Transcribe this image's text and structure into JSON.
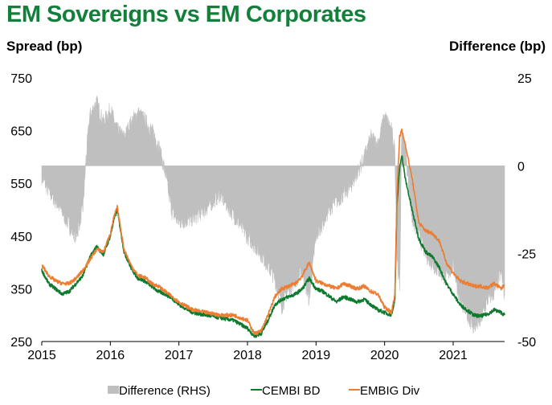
{
  "chart_data": {
    "type": "line",
    "title": "EM Sovereigns vs EM Corporates",
    "ylabel": "Spread (bp)",
    "y2label": "Difference (bp)",
    "xlim": [
      2015.0,
      2021.75
    ],
    "ylim": [
      250,
      750
    ],
    "y2lim": [
      -50,
      25
    ],
    "x_ticks": [
      2015,
      2016,
      2017,
      2018,
      2019,
      2020,
      2021
    ],
    "x_tick_labels": [
      "2015",
      "2016",
      "2017",
      "2018",
      "2019",
      "2020",
      "2021"
    ],
    "y_ticks": [
      250,
      350,
      450,
      550,
      650,
      750
    ],
    "y_tick_labels": [
      "250",
      "350",
      "450",
      "550",
      "650",
      "750"
    ],
    "y2_ticks": [
      -50,
      -25,
      0,
      25
    ],
    "y2_tick_labels": [
      "-50",
      "-25",
      "0",
      "25"
    ],
    "legend_position": "bottom",
    "series": [
      {
        "name": "Difference (RHS)",
        "axis": "right",
        "style": "area",
        "color": "#bfbfbf",
        "x": [
          2015.0,
          2015.1,
          2015.2,
          2015.3,
          2015.4,
          2015.5,
          2015.6,
          2015.65,
          2015.7,
          2015.8,
          2015.9,
          2016.0,
          2016.1,
          2016.2,
          2016.3,
          2016.4,
          2016.5,
          2016.6,
          2016.7,
          2016.8,
          2016.9,
          2017.0,
          2017.2,
          2017.4,
          2017.6,
          2017.8,
          2018.0,
          2018.2,
          2018.4,
          2018.5,
          2018.6,
          2018.8,
          2018.9,
          2019.0,
          2019.2,
          2019.4,
          2019.5,
          2019.6,
          2019.7,
          2019.8,
          2019.9,
          2020.0,
          2020.1,
          2020.15,
          2020.18,
          2020.22,
          2020.25,
          2020.3,
          2020.4,
          2020.5,
          2020.6,
          2020.7,
          2020.8,
          2020.9,
          2021.0,
          2021.1,
          2021.2,
          2021.3,
          2021.4,
          2021.5,
          2021.6,
          2021.7,
          2021.75
        ],
        "values": [
          -3,
          -7,
          -10,
          -13,
          -17,
          -20,
          -12,
          3,
          14,
          18,
          12,
          16,
          10,
          8,
          12,
          15,
          13,
          10,
          6,
          -2,
          -13,
          -16,
          -15,
          -12,
          -8,
          -14,
          -20,
          -25,
          -32,
          -40,
          -35,
          -30,
          -38,
          -20,
          -12,
          -8,
          -6,
          -2,
          2,
          8,
          6,
          14,
          10,
          4,
          -25,
          -35,
          10,
          5,
          -15,
          -20,
          -25,
          -28,
          -30,
          -32,
          -28,
          -38,
          -42,
          -46,
          -44,
          -38,
          -36,
          -30,
          -37
        ]
      },
      {
        "name": "CEMBI BD",
        "axis": "left",
        "style": "line",
        "color": "#0e7a2e",
        "x": [
          2015.0,
          2015.1,
          2015.2,
          2015.3,
          2015.4,
          2015.5,
          2015.6,
          2015.7,
          2015.8,
          2015.9,
          2016.0,
          2016.05,
          2016.1,
          2016.2,
          2016.3,
          2016.4,
          2016.5,
          2016.6,
          2016.7,
          2016.8,
          2016.9,
          2017.0,
          2017.2,
          2017.4,
          2017.6,
          2017.8,
          2018.0,
          2018.1,
          2018.2,
          2018.3,
          2018.4,
          2018.5,
          2018.6,
          2018.7,
          2018.8,
          2018.9,
          2019.0,
          2019.1,
          2019.2,
          2019.3,
          2019.4,
          2019.5,
          2019.6,
          2019.7,
          2019.8,
          2019.9,
          2020.0,
          2020.1,
          2020.15,
          2020.18,
          2020.22,
          2020.25,
          2020.3,
          2020.4,
          2020.5,
          2020.6,
          2020.7,
          2020.8,
          2020.9,
          2021.0,
          2021.1,
          2021.2,
          2021.3,
          2021.4,
          2021.5,
          2021.6,
          2021.7,
          2021.75
        ],
        "values": [
          385,
          360,
          350,
          340,
          345,
          360,
          375,
          410,
          430,
          415,
          450,
          480,
          500,
          420,
          390,
          370,
          365,
          355,
          345,
          340,
          332,
          320,
          305,
          300,
          295,
          290,
          275,
          260,
          265,
          290,
          320,
          330,
          335,
          340,
          350,
          370,
          350,
          345,
          335,
          325,
          335,
          330,
          325,
          330,
          320,
          310,
          305,
          300,
          330,
          510,
          580,
          605,
          560,
          500,
          445,
          420,
          410,
          390,
          360,
          340,
          320,
          310,
          300,
          298,
          302,
          310,
          305,
          300
        ]
      },
      {
        "name": "EMBIG Div",
        "axis": "left",
        "style": "line",
        "color": "#ed7d31",
        "x": [
          2015.0,
          2015.1,
          2015.2,
          2015.3,
          2015.4,
          2015.5,
          2015.6,
          2015.7,
          2015.8,
          2015.9,
          2016.0,
          2016.05,
          2016.1,
          2016.2,
          2016.3,
          2016.4,
          2016.5,
          2016.6,
          2016.7,
          2016.8,
          2016.9,
          2017.0,
          2017.2,
          2017.4,
          2017.6,
          2017.8,
          2018.0,
          2018.1,
          2018.2,
          2018.3,
          2018.4,
          2018.5,
          2018.6,
          2018.7,
          2018.8,
          2018.9,
          2019.0,
          2019.1,
          2019.2,
          2019.3,
          2019.4,
          2019.5,
          2019.6,
          2019.7,
          2019.8,
          2019.9,
          2020.0,
          2020.1,
          2020.15,
          2020.18,
          2020.22,
          2020.25,
          2020.3,
          2020.4,
          2020.5,
          2020.6,
          2020.7,
          2020.8,
          2020.9,
          2021.0,
          2021.1,
          2021.2,
          2021.3,
          2021.4,
          2021.5,
          2021.6,
          2021.7,
          2021.75
        ],
        "values": [
          395,
          375,
          365,
          360,
          360,
          370,
          385,
          405,
          425,
          420,
          455,
          485,
          505,
          425,
          395,
          375,
          372,
          360,
          355,
          345,
          335,
          325,
          310,
          305,
          300,
          300,
          290,
          265,
          270,
          300,
          335,
          350,
          355,
          360,
          375,
          400,
          365,
          360,
          355,
          350,
          360,
          355,
          350,
          355,
          345,
          340,
          315,
          305,
          340,
          530,
          640,
          650,
          625,
          560,
          475,
          460,
          455,
          440,
          400,
          380,
          365,
          360,
          355,
          355,
          352,
          360,
          350,
          358
        ]
      }
    ]
  }
}
